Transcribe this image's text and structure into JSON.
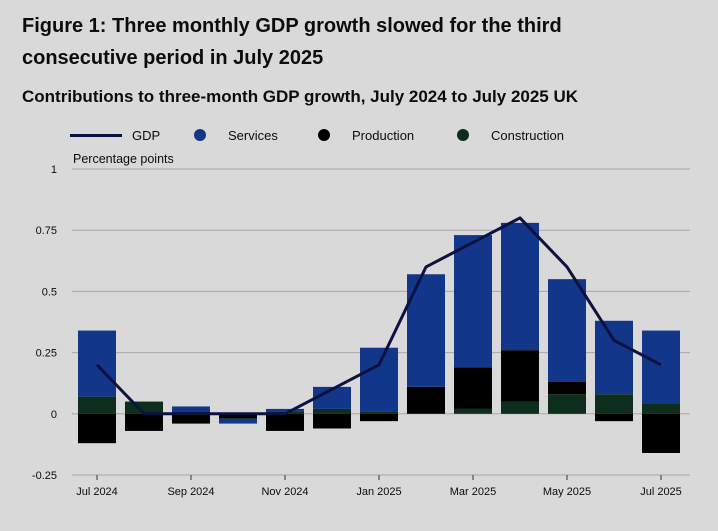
{
  "title": "Figure 1: Three monthly GDP growth slowed for the third consecutive period in July 2025",
  "subtitle": "Contributions to three-month GDP growth, July 2024 to July 2025 UK",
  "legend": {
    "gdp": "GDP",
    "services": "Services",
    "production": "Production",
    "construction": "Construction"
  },
  "colors": {
    "gdp": "#0d1140",
    "services": "#12368a",
    "production": "#000000",
    "construction": "#0e2e1c",
    "grid": "#a8a8a8",
    "background": "#d9d9d9"
  },
  "chart_data": {
    "type": "bar",
    "stacked": true,
    "ylabel": "Percentage points",
    "ylim": [
      -0.25,
      1
    ],
    "yticks": [
      -0.25,
      0,
      0.25,
      0.5,
      0.75,
      1
    ],
    "ytick_labels": [
      "-0.25",
      "0",
      "0.25",
      "0.5",
      "0.75",
      "1"
    ],
    "categories": [
      "Jul 2024",
      "Aug 2024",
      "Sep 2024",
      "Oct 2024",
      "Nov 2024",
      "Dec 2024",
      "Jan 2025",
      "Feb 2025",
      "Mar 2025",
      "Apr 2025",
      "May 2025",
      "Jun 2025",
      "Jul 2025"
    ],
    "x_tick_labels": [
      "Jul 2024",
      "",
      "Sep 2024",
      "",
      "Nov 2024",
      "",
      "Jan 2025",
      "",
      "Mar 2025",
      "",
      "May 2025",
      "",
      "Jul 2025"
    ],
    "series": [
      {
        "name": "Construction",
        "values": [
          0.07,
          0.05,
          0.01,
          0.0,
          0.01,
          0.02,
          0.01,
          0.0,
          0.02,
          0.05,
          0.08,
          0.08,
          0.04
        ]
      },
      {
        "name": "Production",
        "values": [
          -0.12,
          -0.07,
          -0.04,
          -0.02,
          -0.07,
          -0.06,
          -0.03,
          0.11,
          0.17,
          0.21,
          0.05,
          -0.03,
          -0.16
        ]
      },
      {
        "name": "Services",
        "values": [
          0.27,
          0.0,
          0.02,
          -0.02,
          0.01,
          0.09,
          0.26,
          0.46,
          0.54,
          0.52,
          0.42,
          0.3,
          0.3
        ]
      }
    ],
    "line": {
      "name": "GDP",
      "values": [
        0.2,
        0.0,
        0.0,
        0.0,
        0.0,
        0.1,
        0.2,
        0.6,
        0.7,
        0.8,
        0.6,
        0.3,
        0.2
      ]
    },
    "grid": true,
    "legend_position": "top"
  }
}
